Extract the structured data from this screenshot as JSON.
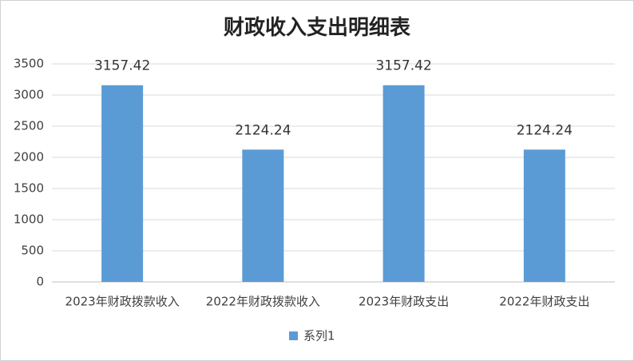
{
  "chart_data": {
    "type": "bar",
    "title": "财政收入支出明细表",
    "categories": [
      "2023年财政拨款收入",
      "2022年财政拨款收入",
      "2023年财政支出",
      "2022年财政支出"
    ],
    "series": [
      {
        "name": "系列1",
        "color": "#5b9bd5",
        "values": [
          3157.42,
          2124.24,
          3157.42,
          2124.24
        ]
      }
    ],
    "ylim": [
      0,
      3500
    ],
    "yticks": [
      0,
      500,
      1000,
      1500,
      2000,
      2500,
      3000,
      3500
    ],
    "grid": true,
    "legend": "bottom"
  }
}
